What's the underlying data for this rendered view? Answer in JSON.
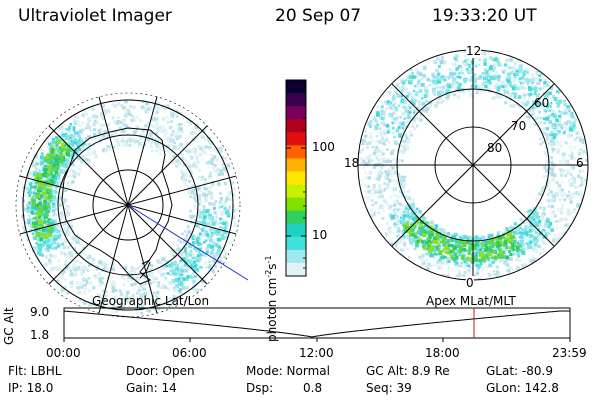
{
  "header": {
    "instrument": "Ultraviolet Imager",
    "date": "20 Sep 07",
    "time": "19:33:20 UT"
  },
  "left_panel": {
    "caption": "Geographic Lat/Lon"
  },
  "right_panel": {
    "caption": "Apex MLat/MLT",
    "lat_labels": [
      "60",
      "70",
      "80"
    ],
    "mlt_labels": {
      "top": "12",
      "left": "18",
      "right": "6",
      "bottom": "0"
    }
  },
  "colorbar": {
    "unit_label": "photon cm",
    "unit_exp1": "-2",
    "unit_mid": "s",
    "unit_exp2": "-1",
    "ticks": [
      "100",
      "10"
    ],
    "colors": [
      "#0b0030",
      "#3a0050",
      "#7a0060",
      "#b00020",
      "#e01010",
      "#ff6000",
      "#ffb000",
      "#ffe800",
      "#c8f000",
      "#80e000",
      "#30d060",
      "#20d0c0",
      "#40e0e0",
      "#a0e8f0",
      "#e0f4f8"
    ]
  },
  "altitude_plot": {
    "axis_title": "GC Alt",
    "y_ticks": [
      "9.0",
      "1.8"
    ],
    "x_ticks": [
      "00:00",
      "06:00",
      "12:00",
      "18:00",
      "23:59"
    ]
  },
  "info": {
    "flt": "Flt: LBHL",
    "door": "Door: Open",
    "mode": "Mode: Normal",
    "gc_alt": "GC Alt: 8.9 Re",
    "glat": "GLat: -80.9",
    "ip": "IP: 18.0",
    "gain": "Gain: 14",
    "dsp_label": "Dsp:",
    "dsp_value": "0.8",
    "seq": "Seq: 39",
    "glon": "GLon: 142.8"
  }
}
